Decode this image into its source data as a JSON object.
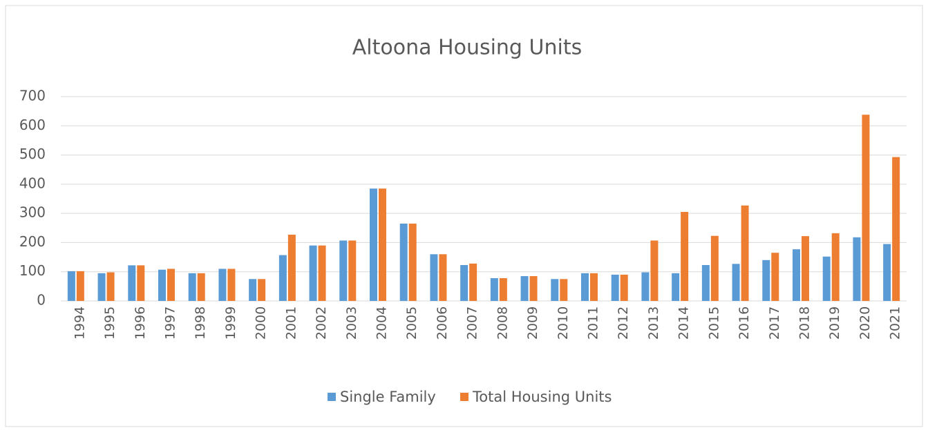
{
  "chart_data": {
    "type": "bar",
    "title": "Altoona Housing Units",
    "categories": [
      "1994",
      "1995",
      "1996",
      "1997",
      "1998",
      "1999",
      "2000",
      "2001",
      "2002",
      "2003",
      "2004",
      "2005",
      "2006",
      "2007",
      "2008",
      "2009",
      "2010",
      "2011",
      "2012",
      "2013",
      "2014",
      "2015",
      "2016",
      "2017",
      "2018",
      "2019",
      "2020",
      "2021"
    ],
    "series": [
      {
        "name": "Single Family",
        "color": "#5b9bd5",
        "values": [
          102,
          95,
          122,
          107,
          95,
          110,
          75,
          157,
          190,
          207,
          385,
          265,
          160,
          123,
          78,
          85,
          75,
          95,
          90,
          98,
          95,
          123,
          127,
          140,
          177,
          152,
          218,
          195
        ]
      },
      {
        "name": "Total Housing Units",
        "color": "#ed7d31",
        "values": [
          102,
          98,
          122,
          110,
          95,
          110,
          75,
          227,
          190,
          207,
          385,
          265,
          160,
          128,
          78,
          85,
          75,
          95,
          90,
          207,
          305,
          223,
          327,
          165,
          222,
          232,
          638,
          493
        ]
      }
    ],
    "ylim": [
      0,
      700
    ],
    "yticks": [
      0,
      100,
      200,
      300,
      400,
      500,
      600,
      700
    ],
    "grid": true,
    "legend": "bottom"
  }
}
